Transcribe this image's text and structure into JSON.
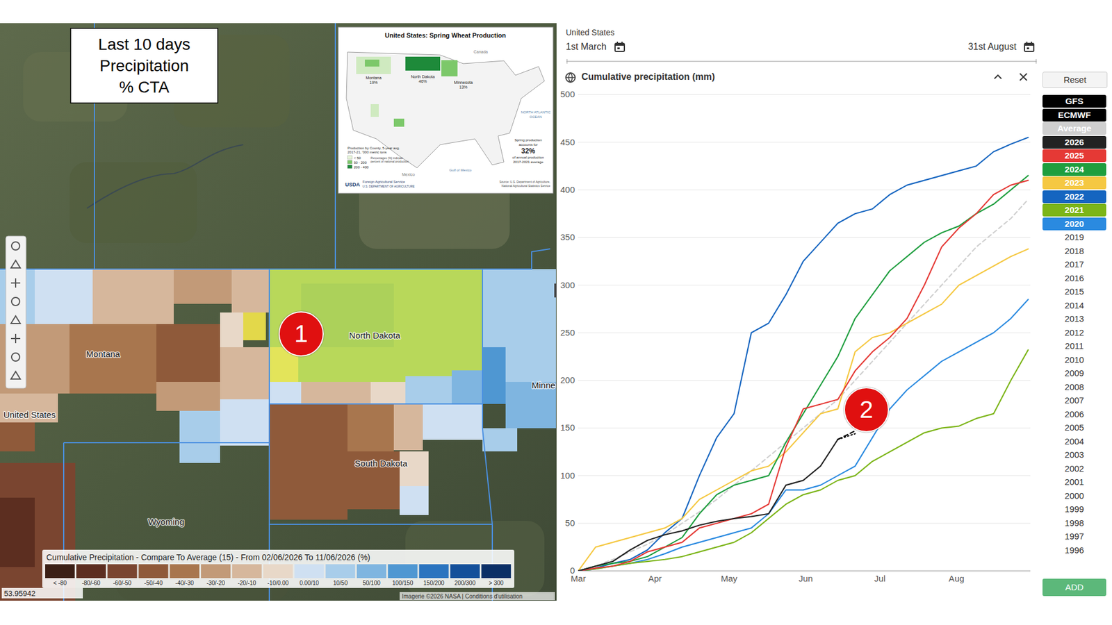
{
  "map": {
    "box_title": [
      "Last 10 days",
      "Precipitation",
      "% CTA"
    ],
    "labels": [
      "Montana",
      "North Dakota",
      "South Dakota",
      "Wyoming",
      "United States",
      "Minne"
    ],
    "cells": [
      "10/50",
      "0.00/10",
      "-20/-10",
      "-30/-20",
      "-20/-10",
      "-30/-20",
      "-40/-30",
      "-50/-40",
      "-10/0.00",
      "-20/-10",
      "-30/-20",
      "10/50",
      "0.00/10",
      "-20/-10",
      "-50/-40",
      "-60/-50",
      "-80/-60",
      "0.00/10",
      "-20/-10",
      "-10/0.00",
      "10/50",
      "50/100",
      "10/50",
      "100/150",
      "50/100",
      "-50/-40",
      "-40/-30",
      "-50/-40",
      "-20/-10",
      "-10/0.00",
      "0.00/10",
      "0.00/10",
      "10/50"
    ],
    "legend": {
      "title": "Cumulative Precipitation - Compare To Average (15) - From 02/06/2026 To 11/06/2026 (%)",
      "classes": [
        "< -80",
        "-80/-60",
        "-60/-50",
        "-50/-40",
        "-40/-30",
        "-30/-20",
        "-20/-10",
        "-10/0.00",
        "0.00/10",
        "10/50",
        "50/100",
        "100/150",
        "150/200",
        "200/300",
        "> 300"
      ],
      "colors": [
        "#3b1f16",
        "#5c2e20",
        "#7a4530",
        "#8f5a3a",
        "#a8764e",
        "#c29a78",
        "#d6b79c",
        "#e8d8c8",
        "#cfe0f2",
        "#a8cdea",
        "#7fb5e0",
        "#4f97d2",
        "#2a74bf",
        "#14509a",
        "#0b2f66"
      ]
    },
    "coordinates": "53.95942",
    "attribution": "Imagerie ©2026 NASA | Conditions d'utilisation"
  },
  "inset": {
    "title": "United States: Spring Wheat Production",
    "state_shares": [
      {
        "state": "Montana",
        "share": "19%"
      },
      {
        "state": "North Dakota",
        "share": "46%"
      },
      {
        "state": "Minnesota",
        "share": "13%"
      }
    ],
    "legend_title": [
      "Production by County, 5-year avg.",
      "2017-21, '000 metric tons"
    ],
    "legend_classes": [
      "< 50",
      "50 - 200",
      "200 - 400"
    ],
    "legend_note": [
      "Percentages (%) indicate",
      "percent of national production"
    ],
    "note": [
      "Spring production",
      "accounts for",
      "32%",
      "of annual production",
      "2017-2021 average"
    ],
    "places": [
      "Canada",
      "NORTH ATLANTIC",
      "OCEAN",
      "Mexico",
      "Gulf of Mexico"
    ],
    "agency": [
      "USDA",
      "Foreign Agricultural Service",
      "U.S. DEPARTMENT OF AGRICULTURE"
    ],
    "source": [
      "Source: U.S. Department of Agriculture,",
      "National Agricultural Statistics Service"
    ]
  },
  "markers": [
    "1",
    "2"
  ],
  "chart_data": {
    "type": "line",
    "region": "United States",
    "date_from": "1st March",
    "date_to": "31st August",
    "title": "Cumulative precipitation (mm)",
    "x": [
      0,
      7,
      14,
      21,
      28,
      35,
      42,
      49,
      56,
      63,
      70,
      77,
      84,
      91,
      98,
      105,
      112,
      119,
      126,
      133,
      140,
      147,
      154,
      161,
      168,
      175,
      182
    ],
    "xlim": [
      0,
      183
    ],
    "xticks": [
      {
        "value": 0,
        "label": "Mar"
      },
      {
        "value": 31,
        "label": "Apr"
      },
      {
        "value": 61,
        "label": "May"
      },
      {
        "value": 92,
        "label": "Jun"
      },
      {
        "value": 122,
        "label": "Jul"
      },
      {
        "value": 153,
        "label": "Aug"
      }
    ],
    "ylim": [
      0,
      500
    ],
    "yticks": [
      0,
      50,
      100,
      150,
      200,
      250,
      300,
      350,
      400,
      450,
      500
    ],
    "grid": true,
    "legend": "right",
    "series": [
      {
        "name": "GFS",
        "color": "#000000",
        "line_style": "dashed",
        "values": [
          null,
          null,
          null,
          null,
          null,
          null,
          null,
          null,
          null,
          null,
          null,
          null,
          null,
          null,
          null,
          138,
          147,
          null,
          null,
          null,
          null,
          null,
          null,
          null,
          null,
          null,
          null
        ]
      },
      {
        "name": "ECMWF",
        "color": "#000000",
        "line_style": "dotted",
        "values": [
          null,
          null,
          null,
          null,
          null,
          null,
          null,
          null,
          null,
          null,
          null,
          null,
          null,
          null,
          null,
          138,
          144,
          null,
          null,
          null,
          null,
          null,
          null,
          null,
          null,
          null,
          null
        ]
      },
      {
        "name": "Average",
        "color": "#cfcfcf",
        "line_style": "dashed",
        "values": [
          0,
          5,
          12,
          20,
          28,
          38,
          50,
          62,
          75,
          90,
          105,
          120,
          135,
          150,
          165,
          180,
          200,
          220,
          240,
          260,
          280,
          300,
          320,
          340,
          355,
          370,
          390
        ]
      },
      {
        "name": "2026",
        "color": "#222222",
        "line_style": "solid",
        "values": [
          0,
          5,
          10,
          22,
          32,
          38,
          42,
          48,
          52,
          55,
          57,
          60,
          90,
          95,
          110,
          138,
          null,
          null,
          null,
          null,
          null,
          null,
          null,
          null,
          null,
          null,
          null
        ]
      },
      {
        "name": "2025",
        "color": "#e53935",
        "line_style": "solid",
        "values": [
          0,
          3,
          5,
          10,
          20,
          25,
          30,
          45,
          50,
          55,
          60,
          70,
          130,
          170,
          175,
          180,
          210,
          230,
          245,
          265,
          300,
          340,
          360,
          375,
          395,
          405,
          410
        ]
      },
      {
        "name": "2024",
        "color": "#1e9e3e",
        "line_style": "solid",
        "values": [
          0,
          5,
          8,
          10,
          15,
          25,
          35,
          60,
          80,
          90,
          95,
          100,
          135,
          165,
          195,
          225,
          265,
          290,
          315,
          330,
          345,
          355,
          362,
          375,
          385,
          400,
          415
        ]
      },
      {
        "name": "2023",
        "color": "#f5c842",
        "line_style": "solid",
        "values": [
          0,
          25,
          30,
          35,
          40,
          45,
          55,
          75,
          85,
          95,
          105,
          110,
          125,
          145,
          165,
          170,
          230,
          245,
          250,
          260,
          270,
          280,
          300,
          310,
          320,
          330,
          338
        ]
      },
      {
        "name": "2022",
        "color": "#1565c0",
        "line_style": "solid",
        "values": [
          0,
          3,
          8,
          12,
          22,
          40,
          55,
          100,
          140,
          165,
          250,
          260,
          290,
          325,
          345,
          365,
          375,
          380,
          395,
          405,
          410,
          415,
          420,
          425,
          440,
          448,
          455
        ]
      },
      {
        "name": "2021",
        "color": "#7cb518",
        "line_style": "solid",
        "values": [
          0,
          2,
          5,
          8,
          10,
          12,
          15,
          20,
          25,
          30,
          40,
          55,
          70,
          80,
          85,
          95,
          100,
          115,
          125,
          135,
          145,
          150,
          152,
          160,
          165,
          200,
          232
        ]
      },
      {
        "name": "2020",
        "color": "#2a8ae0",
        "line_style": "solid",
        "values": [
          0,
          2,
          5,
          8,
          12,
          18,
          25,
          30,
          35,
          40,
          45,
          60,
          85,
          85,
          90,
          100,
          110,
          140,
          170,
          190,
          205,
          220,
          230,
          240,
          250,
          265,
          285
        ]
      }
    ]
  },
  "controls": {
    "reset": "Reset",
    "add": "ADD",
    "more_years": [
      "2019",
      "2018",
      "2017",
      "2016",
      "2015",
      "2014",
      "2013",
      "2012",
      "2011",
      "2010",
      "2009",
      "2008",
      "2007",
      "2006",
      "2005",
      "2004",
      "2003",
      "2002",
      "2001",
      "2000",
      "1999",
      "1998",
      "1997",
      "1996"
    ]
  }
}
